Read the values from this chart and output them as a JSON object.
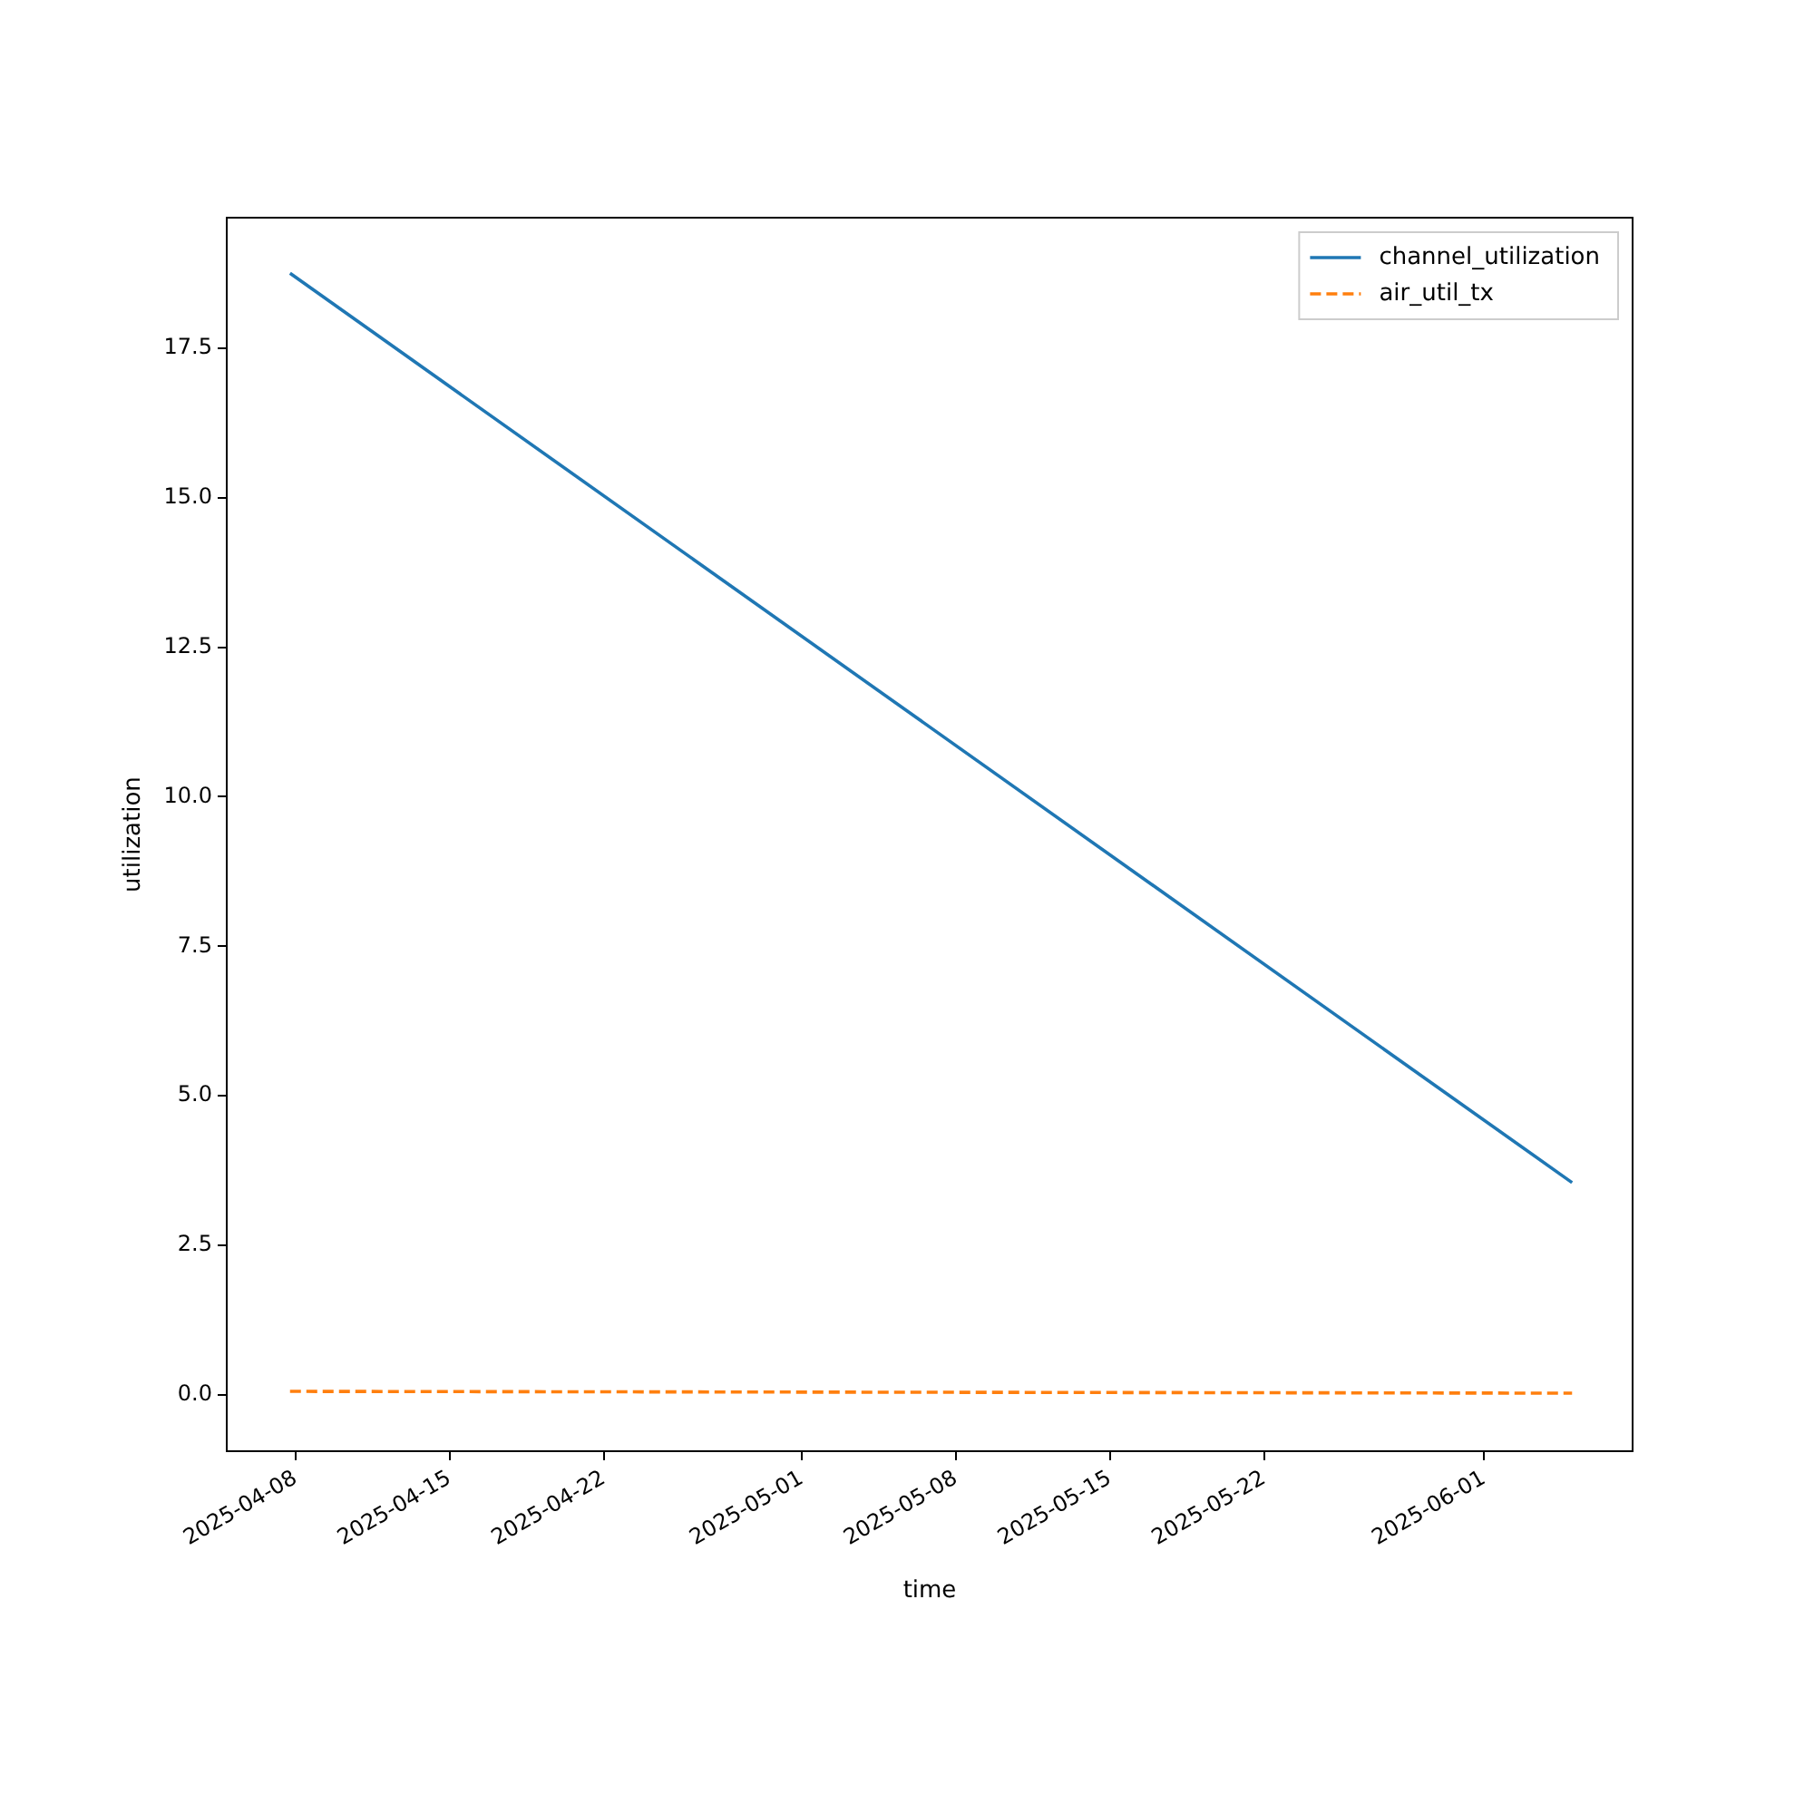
{
  "chart_data": {
    "type": "line",
    "xlabel": "time",
    "ylabel": "utilization",
    "x": [
      "2025-04-07T18:00",
      "2025-06-05T00:00"
    ],
    "series": [
      {
        "name": "channel_utilization",
        "color": "#1f77b4",
        "values": [
          18.75,
          3.55
        ],
        "line_style": "solid"
      },
      {
        "name": "air_util_tx",
        "color": "#ff7f0e",
        "values": [
          0.06,
          0.03
        ],
        "line_style": "dashed"
      }
    ],
    "xlim": [
      "2025-04-04T21:00",
      "2025-06-07T18:00"
    ],
    "xticks": [
      "2025-04-08",
      "2025-04-15",
      "2025-04-22",
      "2025-05-01",
      "2025-05-08",
      "2025-05-15",
      "2025-05-22",
      "2025-06-01"
    ],
    "ylim": [
      -0.94,
      19.68
    ],
    "yticks": [
      {
        "value": 0,
        "label": "0.0"
      },
      {
        "value": 2.5,
        "label": "2.5"
      },
      {
        "value": 5,
        "label": "5.0"
      },
      {
        "value": 7.5,
        "label": "7.5"
      },
      {
        "value": 10,
        "label": "10.0"
      },
      {
        "value": 12.5,
        "label": "12.5"
      },
      {
        "value": 15,
        "label": "15.0"
      },
      {
        "value": 17.5,
        "label": "17.5"
      }
    ],
    "grid": false,
    "legend": "top right",
    "marker": "none"
  }
}
